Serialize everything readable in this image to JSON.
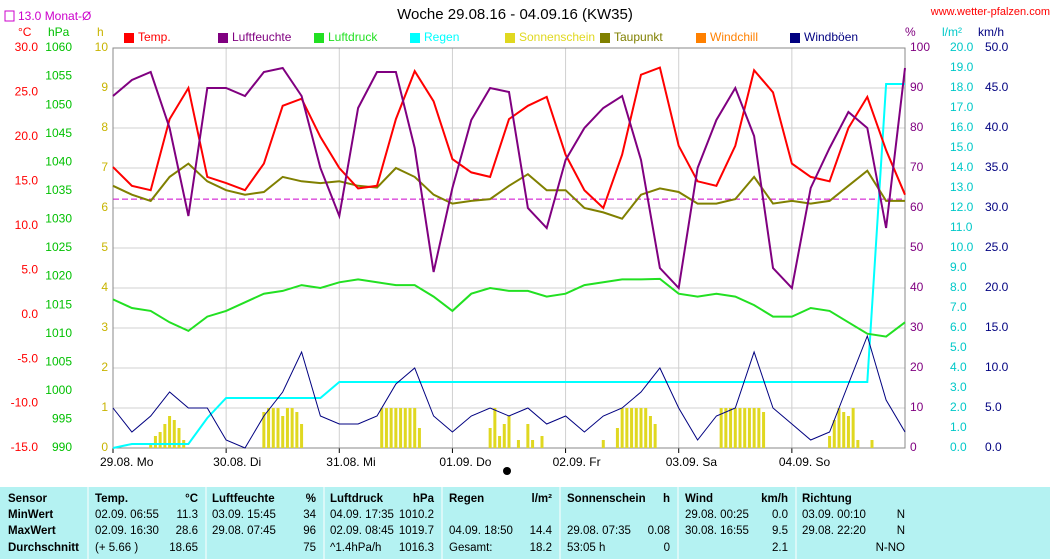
{
  "chart_data": {
    "type": "line",
    "title": "Woche 29.08.16 - 04.09.16 (KW35)",
    "source": "www.wetter-pfalzen.com",
    "reference": {
      "label": "13.0 Monat-Ø",
      "value": 13.0,
      "axis": "temp",
      "color": "#cc00cc"
    },
    "grid": true,
    "xlim": [
      0,
      168
    ],
    "xticks": [
      {
        "value": 0,
        "label": "29.08. Mo"
      },
      {
        "value": 24,
        "label": "30.08. Di"
      },
      {
        "value": 48,
        "label": "31.08. Mi"
      },
      {
        "value": 72,
        "label": "01.09. Do"
      },
      {
        "value": 96,
        "label": "02.09. Fr"
      },
      {
        "value": 120,
        "label": "03.09. Sa"
      },
      {
        "value": 144,
        "label": "04.09. So"
      }
    ],
    "x": [
      0,
      4,
      8,
      12,
      16,
      20,
      24,
      28,
      32,
      36,
      40,
      44,
      48,
      52,
      56,
      60,
      64,
      68,
      72,
      76,
      80,
      84,
      88,
      92,
      96,
      100,
      104,
      108,
      112,
      116,
      120,
      124,
      128,
      132,
      136,
      140,
      144,
      148,
      152,
      156,
      160,
      164,
      168
    ],
    "axes": {
      "temp": {
        "label": "°C",
        "color": "#ff0000",
        "ylim": [
          -15,
          30
        ],
        "yticks": [
          {
            "value": -15,
            "label": "-15.0"
          },
          {
            "value": -10,
            "label": "-10.0"
          },
          {
            "value": -5,
            "label": "-5.0"
          },
          {
            "value": 0,
            "label": "0.0"
          },
          {
            "value": 5,
            "label": "5.0"
          },
          {
            "value": 10,
            "label": "10.0"
          },
          {
            "value": 15,
            "label": "15.0"
          },
          {
            "value": 20,
            "label": "20.0"
          },
          {
            "value": 25,
            "label": "25.0"
          },
          {
            "value": 30,
            "label": "30.0"
          }
        ]
      },
      "hpa": {
        "label": "hPa",
        "color": "#00c000",
        "ylim": [
          990,
          1060
        ],
        "yticks": [
          990,
          995,
          1000,
          1005,
          1010,
          1015,
          1020,
          1025,
          1030,
          1035,
          1040,
          1045,
          1050,
          1055,
          1060
        ]
      },
      "h": {
        "label": "h",
        "color": "#c8b400",
        "ylim": [
          0,
          10
        ],
        "yticks": [
          0,
          1,
          2,
          3,
          4,
          5,
          6,
          7,
          8,
          9,
          10
        ]
      },
      "pct": {
        "label": "%",
        "color": "#800080",
        "ylim": [
          0,
          100
        ],
        "yticks": [
          0,
          10,
          20,
          30,
          40,
          50,
          60,
          70,
          80,
          90,
          100
        ]
      },
      "rain": {
        "label": "l/m²",
        "color": "#00c8c8",
        "ylim": [
          0,
          20
        ],
        "yticks": [
          {
            "value": 0,
            "label": "0.0"
          },
          {
            "value": 1,
            "label": "1.0"
          },
          {
            "value": 2,
            "label": "2.0"
          },
          {
            "value": 3,
            "label": "3.0"
          },
          {
            "value": 4,
            "label": "4.0"
          },
          {
            "value": 5,
            "label": "5.0"
          },
          {
            "value": 6,
            "label": "6.0"
          },
          {
            "value": 7,
            "label": "7.0"
          },
          {
            "value": 8,
            "label": "8.0"
          },
          {
            "value": 9,
            "label": "9.0"
          },
          {
            "value": 10,
            "label": "10.0"
          },
          {
            "value": 11,
            "label": "11.0"
          },
          {
            "value": 12,
            "label": "12.0"
          },
          {
            "value": 13,
            "label": "13.0"
          },
          {
            "value": 14,
            "label": "14.0"
          },
          {
            "value": 15,
            "label": "15.0"
          },
          {
            "value": 16,
            "label": "16.0"
          },
          {
            "value": 17,
            "label": "17.0"
          },
          {
            "value": 18,
            "label": "18.0"
          },
          {
            "value": 19,
            "label": "19.0"
          },
          {
            "value": 20,
            "label": "20.0"
          }
        ]
      },
      "wind": {
        "label": "km/h",
        "color": "#000080",
        "ylim": [
          0,
          50
        ],
        "yticks": [
          {
            "value": 0,
            "label": "0.0"
          },
          {
            "value": 5,
            "label": "5.0"
          },
          {
            "value": 10,
            "label": "10.0"
          },
          {
            "value": 15,
            "label": "15.0"
          },
          {
            "value": 20,
            "label": "20.0"
          },
          {
            "value": 25,
            "label": "25.0"
          },
          {
            "value": 30,
            "label": "30.0"
          },
          {
            "value": 35,
            "label": "35.0"
          },
          {
            "value": 40,
            "label": "40.0"
          },
          {
            "value": 45,
            "label": "45.0"
          },
          {
            "value": 50,
            "label": "50.0"
          }
        ]
      }
    },
    "series": [
      {
        "name": "Temp.",
        "color": "#ff0000",
        "axis": "temp",
        "values": [
          16.6,
          14.5,
          14.0,
          22,
          25.5,
          15.5,
          14.8,
          14.0,
          17,
          23.5,
          24.3,
          20,
          16.5,
          14.2,
          14.5,
          22,
          27.4,
          24,
          17.5,
          16,
          15.5,
          22,
          23.5,
          24.5,
          18,
          14,
          12,
          18,
          27,
          27.8,
          19,
          15,
          14.5,
          19,
          27.5,
          25,
          17,
          15.5,
          15,
          21,
          24.5,
          18.5,
          13.5
        ]
      },
      {
        "name": "Luftfeuchte",
        "color": "#800080",
        "axis": "pct",
        "values": [
          88,
          92,
          94,
          80,
          58,
          90,
          90,
          88,
          94,
          95,
          88,
          70,
          58,
          85,
          94,
          94,
          75,
          44,
          65,
          82,
          90,
          89,
          60,
          55,
          72,
          80,
          85,
          88,
          72,
          45,
          40,
          70,
          82,
          90,
          78,
          45,
          40,
          65,
          75,
          84,
          80,
          55,
          95
        ]
      },
      {
        "name": "Luftdruck",
        "color": "#22e022",
        "axis": "hpa",
        "values": [
          1016,
          1014.5,
          1014,
          1012,
          1010.5,
          1013,
          1014,
          1015.5,
          1017,
          1017.5,
          1018.5,
          1018,
          1019,
          1019.5,
          1019,
          1018.5,
          1018.5,
          1016.5,
          1014,
          1017,
          1018,
          1017.5,
          1017.5,
          1016.5,
          1017,
          1018.5,
          1019,
          1019.5,
          1019.5,
          1019.6,
          1017,
          1016.5,
          1017,
          1016.5,
          1015,
          1013,
          1013,
          1014.5,
          1014,
          1012,
          1010,
          1009.5,
          1012
        ]
      },
      {
        "name": "Regen",
        "color": "#00ffff",
        "axis": "rain",
        "values": [
          0,
          0.2,
          0.2,
          0.2,
          0.2,
          1.5,
          2.5,
          2.5,
          2.5,
          2.5,
          2.5,
          2.5,
          3.3,
          3.3,
          3.3,
          3.3,
          3.3,
          3.3,
          3.3,
          3.3,
          3.3,
          3.3,
          3.3,
          3.3,
          3.3,
          3.3,
          3.3,
          3.3,
          3.3,
          3.3,
          3.3,
          3.3,
          3.3,
          3.3,
          3.3,
          3.3,
          3.3,
          3.3,
          3.3,
          3.3,
          3.3,
          18.2,
          18.2
        ]
      },
      {
        "name": "Sonnenschein",
        "type": "bar",
        "color": "#e0d820",
        "axis": "h",
        "x": [
          8,
          9,
          10,
          11,
          12,
          13,
          14,
          15,
          32,
          33,
          34,
          35,
          36,
          37,
          38,
          39,
          40,
          57,
          58,
          59,
          60,
          61,
          62,
          63,
          64,
          65,
          80,
          81,
          82,
          83,
          84,
          86,
          88,
          89,
          91,
          104,
          107,
          108,
          109,
          110,
          111,
          112,
          113,
          114,
          115,
          129,
          130,
          131,
          132,
          133,
          134,
          135,
          136,
          137,
          138,
          152,
          153,
          154,
          155,
          156,
          157,
          158,
          161
        ],
        "values": [
          0.1,
          0.3,
          0.4,
          0.6,
          0.8,
          0.7,
          0.5,
          0.2,
          0.9,
          1,
          1,
          1,
          0.8,
          1,
          1,
          0.9,
          0.6,
          1,
          1,
          1,
          1,
          1,
          1,
          1,
          1,
          0.5,
          0.5,
          1,
          0.3,
          0.6,
          0.8,
          0.2,
          0.6,
          0.2,
          0.3,
          0.2,
          0.5,
          1,
          1,
          1,
          1,
          1,
          1,
          0.8,
          0.6,
          1,
          1,
          1,
          1,
          1,
          1,
          1,
          1,
          1,
          0.9,
          0.3,
          0.7,
          1,
          0.9,
          0.8,
          1,
          0.2,
          0.2
        ]
      },
      {
        "name": "Taupunkt",
        "color": "#808000",
        "axis": "temp",
        "values": [
          14.5,
          13.5,
          12.8,
          15.5,
          17,
          15,
          14,
          13.5,
          13.8,
          15.5,
          15,
          14.8,
          15,
          14.5,
          14.3,
          16.5,
          15.5,
          13.5,
          12.5,
          12.8,
          13,
          14.5,
          15.8,
          14,
          14,
          12,
          11.5,
          10.8,
          13.5,
          14.2,
          13.8,
          12.5,
          12.5,
          13,
          15.5,
          12.5,
          12.8,
          12.5,
          12.8,
          14.5,
          16.2,
          12.8,
          12.8
        ]
      },
      {
        "name": "Windchill",
        "color": "#ff8000",
        "axis": "temp"
      },
      {
        "name": "Windböen",
        "color": "#000080",
        "axis": "wind",
        "values": [
          5,
          2,
          4,
          7,
          5,
          5,
          1,
          0,
          4,
          7,
          12,
          4,
          3,
          3,
          4,
          8,
          10,
          4,
          2,
          4,
          5,
          4,
          5,
          3,
          4,
          2,
          4,
          5,
          7,
          10,
          5,
          1,
          4,
          5,
          12,
          5,
          3,
          1,
          2,
          8,
          14,
          6,
          2
        ]
      }
    ]
  },
  "table": {
    "header": [
      "Sensor",
      "Temp.",
      "°C",
      "Luftfeuchte",
      "%",
      "Luftdruck",
      "hPa",
      "Regen",
      "l/m²",
      "Sonnenschein",
      "h",
      "Wind",
      "km/h",
      "Richtung"
    ],
    "rows": [
      [
        "MinWert",
        "02.09.  06:55",
        "11.3",
        "03.09.  15:45",
        "34",
        "04.09.  17:35",
        "1010.2",
        null,
        null,
        null,
        null,
        "29.08.  00:25",
        "0.0",
        "03.09.  00:10",
        "N"
      ],
      [
        "MaxWert",
        "02.09.  16:30",
        "28.6",
        "29.08.  07:45",
        "96",
        "02.09.  08:45",
        "1019.7",
        "04.09.  18:50",
        "14.4",
        "29.08.  07:35",
        "0.08",
        "30.08.  16:55",
        "9.5",
        "29.08.  22:20",
        "N"
      ],
      [
        "Durchschnitt",
        "(+ 5.66 )",
        "18.65",
        null,
        "75",
        "^1.4hPa/h",
        "1016.3",
        "Gesamt:",
        "18.2",
        "53:05 h",
        "0",
        null,
        "2.1",
        null,
        "N-NO"
      ]
    ]
  }
}
